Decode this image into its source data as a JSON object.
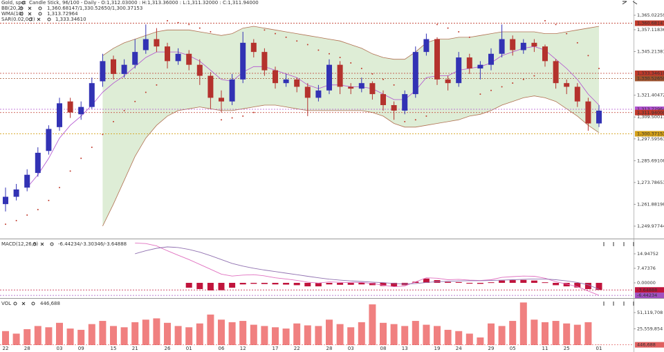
{
  "chart_data": [
    {
      "type": "candlestick",
      "title": "Gold, spot",
      "subtitle": "Candle Stick, 96/100 - Daily - O:1,312.03000 : H:1,313.36000 : L:1,311.32000 : C:1,311.94000",
      "indicators": [
        {
          "name": "BB(20,2)",
          "readout": "1,360.68147/1,330.52650/1,300.37153",
          "color": "#c0392b"
        },
        {
          "name": "WMA(10)",
          "readout": "1,313.72964",
          "color": "#b050d0"
        },
        {
          "name": "SAR(0.02,0.2)",
          "readout": "1,333.34610",
          "color": "#d35400"
        }
      ],
      "up_color": "#3232b4",
      "down_color": "#b4322d",
      "open": [
        1262,
        1266,
        1271,
        1279,
        1291,
        1304,
        1318,
        1311,
        1315,
        1329,
        1341,
        1333,
        1338,
        1346,
        1352,
        1348,
        1340,
        1344,
        1338,
        1332,
        1320,
        1318,
        1330,
        1350,
        1345,
        1335,
        1328,
        1330,
        1326,
        1320,
        1324,
        1338,
        1326,
        1325,
        1328,
        1322,
        1316,
        1313,
        1322,
        1345,
        1352,
        1330,
        1328,
        1342,
        1336,
        1338,
        1344,
        1352,
        1346,
        1350,
        1348,
        1340,
        1328,
        1326,
        1318,
        1306
      ],
      "high": [
        1271,
        1273,
        1281,
        1293,
        1305,
        1320,
        1320,
        1318,
        1331,
        1344,
        1343,
        1341,
        1352,
        1360,
        1358,
        1350,
        1347,
        1346,
        1341,
        1334,
        1324,
        1333,
        1356,
        1352,
        1347,
        1337,
        1333,
        1331,
        1328,
        1327,
        1341,
        1340,
        1328,
        1331,
        1329,
        1324,
        1318,
        1324,
        1348,
        1355,
        1353,
        1332,
        1345,
        1344,
        1340,
        1347,
        1360,
        1354,
        1352,
        1352,
        1349,
        1341,
        1330,
        1328,
        1320,
        1316
      ],
      "low": [
        1258,
        1264,
        1269,
        1277,
        1289,
        1302,
        1309,
        1308,
        1314,
        1326,
        1330,
        1331,
        1336,
        1344,
        1345,
        1336,
        1338,
        1335,
        1327,
        1314,
        1312,
        1316,
        1328,
        1342,
        1332,
        1325,
        1326,
        1323,
        1310,
        1318,
        1322,
        1322,
        1322,
        1323,
        1319,
        1313,
        1308,
        1311,
        1320,
        1343,
        1327,
        1324,
        1326,
        1333,
        1330,
        1335,
        1342,
        1343,
        1344,
        1345,
        1337,
        1325,
        1322,
        1315,
        1302,
        1304
      ],
      "close": [
        1266,
        1270,
        1278,
        1290,
        1303,
        1317,
        1312,
        1315,
        1328,
        1340,
        1333,
        1338,
        1345,
        1352,
        1348,
        1340,
        1344,
        1338,
        1332,
        1320,
        1318,
        1330,
        1350,
        1345,
        1335,
        1328,
        1330,
        1326,
        1320,
        1324,
        1338,
        1326,
        1325,
        1328,
        1322,
        1316,
        1313,
        1322,
        1345,
        1352,
        1330,
        1328,
        1342,
        1336,
        1338,
        1344,
        1352,
        1346,
        1350,
        1348,
        1340,
        1328,
        1326,
        1318,
        1306,
        1313
      ],
      "bands": {
        "fill": "#deedd6",
        "stroke": "#b07050",
        "upper": [
          null,
          null,
          null,
          null,
          null,
          null,
          null,
          null,
          null,
          1343,
          1347,
          1350,
          1352,
          1354,
          1356,
          1357,
          1357,
          1357,
          1356,
          1355,
          1354,
          1355,
          1358,
          1359,
          1358,
          1357,
          1356,
          1355,
          1354,
          1353,
          1352,
          1351,
          1349,
          1347,
          1344,
          1342,
          1341,
          1341,
          1345,
          1350,
          1352,
          1352,
          1353,
          1353,
          1354,
          1355,
          1356,
          1356,
          1356,
          1356,
          1355,
          1355,
          1356,
          1357,
          1358,
          1359
        ],
        "lower": [
          null,
          null,
          null,
          null,
          null,
          null,
          null,
          null,
          null,
          1250,
          1262,
          1275,
          1288,
          1298,
          1305,
          1310,
          1313,
          1314,
          1315,
          1314,
          1313,
          1313,
          1314,
          1315,
          1316,
          1316,
          1315,
          1314,
          1313,
          1313,
          1313,
          1313,
          1313,
          1313,
          1312,
          1310,
          1306,
          1304,
          1304,
          1305,
          1306,
          1307,
          1308,
          1310,
          1311,
          1313,
          1316,
          1318,
          1320,
          1321,
          1320,
          1318,
          1314,
          1310,
          1305,
          1301
        ]
      },
      "wma": {
        "color": "#b050d0",
        "values": [
          null,
          null,
          1271,
          1278,
          1287,
          1298,
          1305,
          1310,
          1316,
          1323,
          1328,
          1332,
          1337,
          1342,
          1345,
          1345,
          1345,
          1343,
          1340,
          1335,
          1330,
          1329,
          1334,
          1337,
          1337,
          1335,
          1333,
          1331,
          1327,
          1325,
          1327,
          1327,
          1326,
          1326,
          1325,
          1322,
          1319,
          1319,
          1324,
          1331,
          1332,
          1332,
          1335,
          1336,
          1337,
          1339,
          1343,
          1345,
          1347,
          1348,
          1346,
          1341,
          1336,
          1330,
          1322,
          1316
        ]
      },
      "sar": {
        "color": "#c0392b",
        "values": [
          1251,
          1253,
          1256,
          1259,
          1264,
          1271,
          1280,
          1287,
          1293,
          1300,
          1307,
          1313,
          1318,
          1323,
          1327,
          1362,
          1361,
          1360,
          1358,
          1356,
          1308,
          1309,
          1310,
          1312,
          1357,
          1355,
          1353,
          1351,
          1349,
          1346,
          1344,
          1342,
          1339,
          1336,
          1333,
          1330,
          1327,
          1307,
          1308,
          1310,
          1360,
          1358,
          1356,
          1353,
          1322,
          1324,
          1326,
          1328,
          1330,
          1332,
          1362,
          1360,
          1355,
          1350,
          1343,
          1336
        ]
      },
      "levels": [
        {
          "value": 1360.68147,
          "label": "1,360.68147",
          "color": "#c0392b"
        },
        {
          "value": 1333.3461,
          "label": "1,333.34610",
          "color": "#c0392b"
        },
        {
          "value": 1330.5265,
          "label": "1,330.52650",
          "color": "#a0522d"
        },
        {
          "value": 1313.72964,
          "label": "1,313.72964",
          "color": "#b050d0"
        },
        {
          "value": 1311.94,
          "label": "1,311.94000",
          "color": "#c0392b"
        },
        {
          "value": 1300.37153,
          "label": "1,300.37153",
          "color": "#d4a017"
        }
      ],
      "ylim": [
        1243.19,
        1373.34
      ],
      "yticks": [
        {
          "value": 1249.97744,
          "label": "1,249.97744"
        },
        {
          "value": 1261.88198,
          "label": "1,261.88198"
        },
        {
          "value": 1273.78653,
          "label": "1,273.78653"
        },
        {
          "value": 1285.69108,
          "label": "1,285.69108"
        },
        {
          "value": 1297.59563,
          "label": "1,297.59563"
        },
        {
          "value": 1309.50017,
          "label": "1,309.50017"
        },
        {
          "value": 1321.40472,
          "label": "1,321.40472"
        },
        {
          "value": 1345.21381,
          "label": "1,345.21381"
        },
        {
          "value": 1357.11836,
          "label": "1,357.11836"
        },
        {
          "value": 1365.02259,
          "label": "1,365.02259"
        }
      ]
    },
    {
      "type": "macd",
      "title": "MACD(12,26,9)",
      "readout": "-6.44234/-3.30346/-3.64888",
      "readout_color": "#c0143c",
      "histogram": {
        "color": "#c0143c",
        "values": [
          null,
          null,
          null,
          null,
          null,
          null,
          null,
          null,
          null,
          null,
          null,
          null,
          null,
          null,
          null,
          null,
          null,
          -2.5,
          -3.2,
          -3.9,
          -3.8,
          -2.5,
          -0.8,
          -0.5,
          -0.6,
          -0.8,
          -0.9,
          -1.2,
          -1.8,
          -1.8,
          -0.8,
          -1.0,
          -1.0,
          -0.8,
          -1.2,
          -1.6,
          -1.9,
          -1.2,
          0.6,
          2.2,
          1.4,
          0.5,
          0.4,
          -0.4,
          -0.5,
          0.3,
          1.2,
          1.4,
          1.5,
          1.2,
          0.3,
          -1.2,
          -1.8,
          -2.4,
          -3.2,
          -3.64888
        ]
      },
      "macd": {
        "color": "#e070c0",
        "values": [
          null,
          null,
          null,
          null,
          null,
          null,
          null,
          null,
          null,
          null,
          null,
          null,
          20.5,
          20.2,
          19.0,
          16.5,
          14.2,
          12.0,
          9.5,
          7.0,
          4.5,
          3.5,
          4.0,
          4.2,
          3.6,
          2.6,
          2.0,
          1.3,
          0.4,
          -0.1,
          0.5,
          0.3,
          0.1,
          0.2,
          -0.3,
          -1.2,
          -2.0,
          -1.6,
          0.5,
          2.6,
          2.4,
          1.6,
          1.8,
          1.4,
          1.2,
          1.6,
          2.8,
          3.2,
          3.5,
          3.4,
          2.4,
          0.6,
          -0.6,
          -2.0,
          -4.2,
          -6.44234
        ]
      },
      "signal": {
        "color": "#9070b0",
        "values": [
          null,
          null,
          null,
          null,
          null,
          null,
          null,
          null,
          null,
          null,
          null,
          null,
          15.0,
          16.5,
          17.8,
          18.5,
          18.2,
          17.2,
          15.8,
          14.0,
          12.0,
          10.0,
          8.6,
          7.5,
          6.6,
          5.8,
          5.0,
          4.2,
          3.4,
          2.6,
          1.9,
          1.4,
          1.0,
          0.7,
          0.4,
          0.1,
          -0.3,
          -0.6,
          -0.4,
          0.2,
          0.6,
          0.8,
          1.0,
          1.1,
          1.1,
          1.2,
          1.4,
          1.6,
          1.8,
          2.0,
          2.0,
          1.6,
          1.0,
          0.2,
          -1.0,
          -3.30346
        ]
      },
      "levels": [
        {
          "value": -3.64888,
          "label": "-3.64888",
          "color": "#c0143c"
        },
        {
          "value": -6.44234,
          "label": "-6.44234",
          "color": "#a050c0"
        }
      ],
      "ylim": [
        -7.47,
        22.42
      ],
      "yticks": [
        {
          "value": 0,
          "label": "0.00000"
        },
        7.47376,
        14.94752
      ]
    },
    {
      "type": "bar",
      "title": "VOL",
      "readout": "446,688",
      "readout_color": "#e06060",
      "color": "#f08080",
      "categories": [
        "22",
        null,
        "28",
        null,
        null,
        "03",
        null,
        "09",
        null,
        null,
        "15",
        null,
        "21",
        null,
        null,
        "26",
        null,
        "01",
        null,
        null,
        "06",
        null,
        "12",
        null,
        null,
        "17",
        null,
        "22",
        null,
        null,
        "28",
        null,
        "03",
        null,
        null,
        "08",
        null,
        "13",
        null,
        null,
        "19",
        null,
        "24",
        null,
        null,
        "29",
        null,
        "05",
        null,
        null,
        "11",
        null,
        "25",
        null,
        null,
        "01"
      ],
      "values": [
        22000000,
        18000000,
        25000000,
        30000000,
        28000000,
        35000000,
        26000000,
        24000000,
        33000000,
        38000000,
        30000000,
        28000000,
        36000000,
        40000000,
        42000000,
        35000000,
        30000000,
        28000000,
        34000000,
        48000000,
        40000000,
        36000000,
        38000000,
        32000000,
        30000000,
        28000000,
        26000000,
        34000000,
        31000000,
        30000000,
        40000000,
        33000000,
        28000000,
        36000000,
        64000000,
        35000000,
        33000000,
        30000000,
        38000000,
        32000000,
        30000000,
        24000000,
        22000000,
        18000000,
        12000000,
        34000000,
        30000000,
        38000000,
        67000000,
        40000000,
        36000000,
        38000000,
        34000000,
        32000000,
        36000000,
        446688
      ],
      "levels": [
        {
          "value": 446688,
          "label": "446,688",
          "color": "#e06060"
        }
      ],
      "ylim": [
        0,
        68500000
      ],
      "yticks": [
        {
          "value": 25559854,
          "label": "25,559,854"
        },
        {
          "value": 51119708,
          "label": "51,119,708"
        }
      ]
    }
  ]
}
